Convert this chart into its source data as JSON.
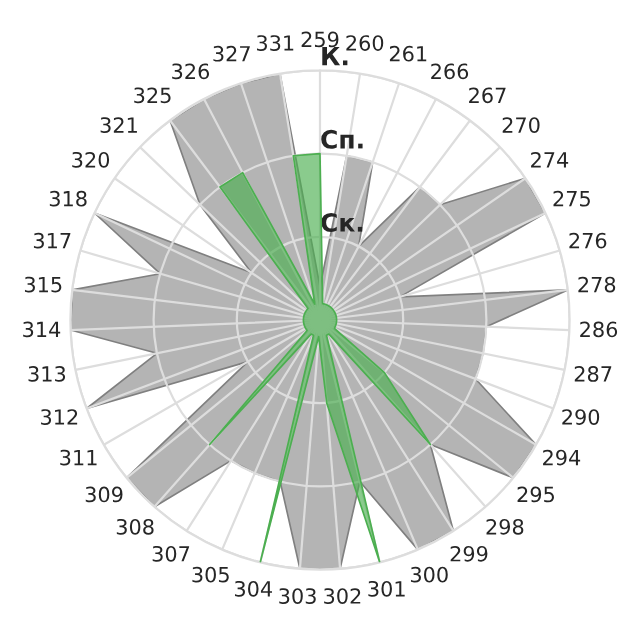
{
  "chart_data": {
    "type": "radar",
    "categories": [
      "259",
      "260",
      "261",
      "266",
      "267",
      "270",
      "274",
      "275",
      "276",
      "278",
      "286",
      "287",
      "290",
      "294",
      "295",
      "298",
      "299",
      "300",
      "301",
      "302",
      "303",
      "304",
      "305",
      "307",
      "308",
      "309",
      "311",
      "312",
      "313",
      "314",
      "315",
      "317",
      "318",
      "320",
      "321",
      "325",
      "326",
      "327",
      "331"
    ],
    "series": [
      {
        "color": "#b4b4b4",
        "values": [
          0.4,
          2,
          2,
          1,
          2,
          2,
          3,
          3,
          1,
          3,
          2,
          2,
          2,
          3,
          3,
          2,
          3,
          3,
          2,
          3,
          3,
          2,
          2,
          2,
          3,
          3,
          1,
          3,
          2,
          3,
          3,
          2,
          3,
          1,
          2,
          3,
          3,
          3,
          3
        ]
      },
      {
        "color": "#4caf50",
        "values": [
          2,
          0.2,
          0.2,
          0.2,
          0.2,
          0.2,
          0.2,
          0.2,
          0.2,
          0.2,
          0.2,
          0.2,
          0.2,
          0.2,
          1,
          2,
          0.2,
          0.2,
          3,
          1,
          0.2,
          3,
          0.2,
          0.2,
          2,
          0.2,
          0.2,
          0.2,
          0.2,
          0.2,
          0.2,
          0.2,
          0.2,
          0.2,
          0.2,
          2,
          2,
          0.2,
          2
        ]
      }
    ],
    "ylim": [
      0,
      3
    ],
    "yticks": [
      {
        "value": 1,
        "label": "Ск."
      },
      {
        "value": 2,
        "label": "Сп."
      },
      {
        "value": 3,
        "label": "К."
      }
    ],
    "grid": true
  }
}
